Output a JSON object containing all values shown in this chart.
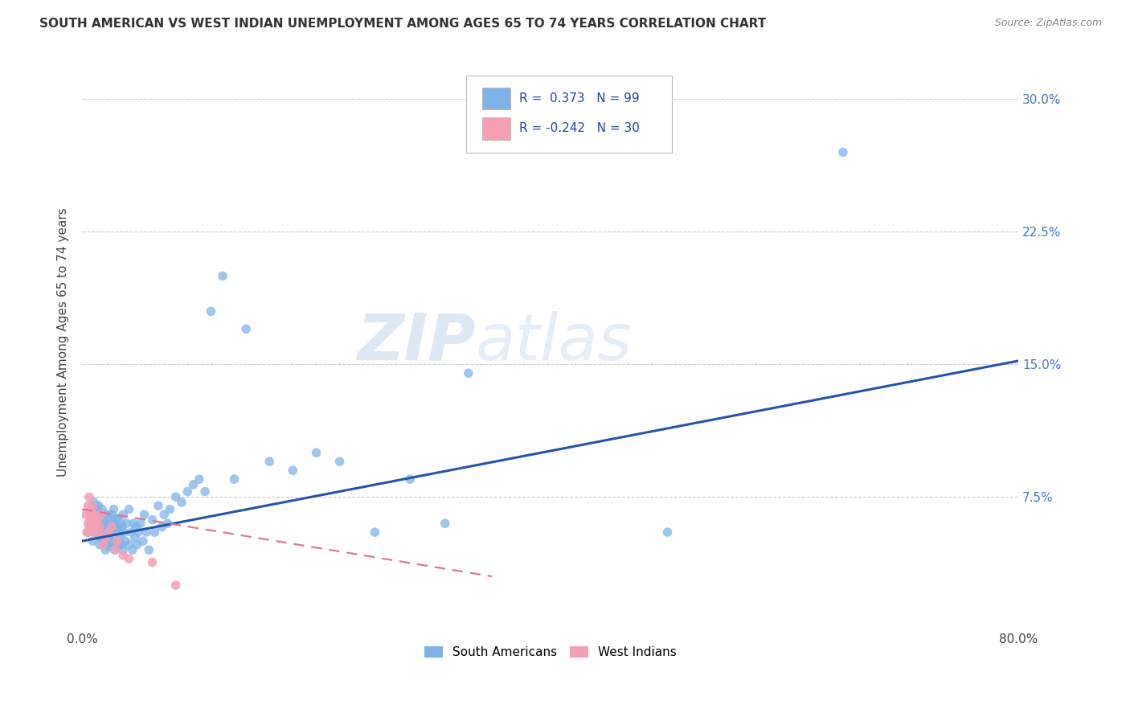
{
  "title": "SOUTH AMERICAN VS WEST INDIAN UNEMPLOYMENT AMONG AGES 65 TO 74 YEARS CORRELATION CHART",
  "source": "Source: ZipAtlas.com",
  "ylabel": "Unemployment Among Ages 65 to 74 years",
  "xlim": [
    0.0,
    0.8
  ],
  "ylim": [
    0.0,
    0.325
  ],
  "xticks": [
    0.0,
    0.1,
    0.2,
    0.3,
    0.4,
    0.5,
    0.6,
    0.7,
    0.8
  ],
  "xticklabels": [
    "0.0%",
    "",
    "",
    "",
    "",
    "",
    "",
    "",
    "80.0%"
  ],
  "yticks": [
    0.0,
    0.075,
    0.15,
    0.225,
    0.3
  ],
  "yticklabels": [
    "",
    "7.5%",
    "15.0%",
    "22.5%",
    "30.0%"
  ],
  "blue_R": 0.373,
  "blue_N": 99,
  "pink_R": -0.242,
  "pink_N": 30,
  "blue_color": "#7fb3e8",
  "pink_color": "#f4a0b4",
  "blue_line_color": "#2255aa",
  "pink_line_color": "#dd7799",
  "watermark1": "ZIP",
  "watermark2": "atlas",
  "legend_label_blue": "South Americans",
  "legend_label_pink": "West Indians",
  "blue_scatter_x": [
    0.005,
    0.007,
    0.008,
    0.009,
    0.01,
    0.01,
    0.01,
    0.011,
    0.012,
    0.012,
    0.013,
    0.013,
    0.014,
    0.014,
    0.015,
    0.015,
    0.015,
    0.016,
    0.016,
    0.017,
    0.017,
    0.018,
    0.018,
    0.019,
    0.02,
    0.02,
    0.02,
    0.021,
    0.021,
    0.022,
    0.022,
    0.023,
    0.023,
    0.024,
    0.025,
    0.025,
    0.025,
    0.026,
    0.026,
    0.027,
    0.027,
    0.028,
    0.028,
    0.029,
    0.03,
    0.03,
    0.03,
    0.031,
    0.031,
    0.032,
    0.033,
    0.033,
    0.034,
    0.035,
    0.035,
    0.036,
    0.037,
    0.038,
    0.04,
    0.04,
    0.042,
    0.043,
    0.044,
    0.045,
    0.046,
    0.047,
    0.048,
    0.05,
    0.052,
    0.053,
    0.055,
    0.057,
    0.06,
    0.062,
    0.065,
    0.068,
    0.07,
    0.073,
    0.075,
    0.08,
    0.085,
    0.09,
    0.095,
    0.1,
    0.105,
    0.11,
    0.12,
    0.13,
    0.14,
    0.16,
    0.18,
    0.2,
    0.22,
    0.25,
    0.28,
    0.31,
    0.33,
    0.5,
    0.65
  ],
  "blue_scatter_y": [
    0.055,
    0.06,
    0.065,
    0.05,
    0.06,
    0.068,
    0.072,
    0.055,
    0.062,
    0.07,
    0.058,
    0.065,
    0.053,
    0.07,
    0.048,
    0.057,
    0.066,
    0.052,
    0.063,
    0.055,
    0.068,
    0.05,
    0.06,
    0.058,
    0.045,
    0.052,
    0.06,
    0.048,
    0.065,
    0.053,
    0.058,
    0.047,
    0.063,
    0.055,
    0.05,
    0.057,
    0.065,
    0.048,
    0.06,
    0.052,
    0.068,
    0.045,
    0.058,
    0.062,
    0.05,
    0.055,
    0.063,
    0.048,
    0.057,
    0.052,
    0.06,
    0.048,
    0.058,
    0.045,
    0.065,
    0.055,
    0.05,
    0.06,
    0.048,
    0.068,
    0.055,
    0.045,
    0.06,
    0.052,
    0.058,
    0.048,
    0.055,
    0.06,
    0.05,
    0.065,
    0.055,
    0.045,
    0.062,
    0.055,
    0.07,
    0.058,
    0.065,
    0.06,
    0.068,
    0.075,
    0.072,
    0.078,
    0.082,
    0.085,
    0.078,
    0.18,
    0.2,
    0.085,
    0.17,
    0.095,
    0.09,
    0.1,
    0.095,
    0.055,
    0.085,
    0.06,
    0.145,
    0.055,
    0.27
  ],
  "pink_scatter_x": [
    0.003,
    0.004,
    0.005,
    0.005,
    0.006,
    0.006,
    0.007,
    0.007,
    0.008,
    0.008,
    0.009,
    0.009,
    0.01,
    0.01,
    0.011,
    0.012,
    0.013,
    0.014,
    0.015,
    0.016,
    0.018,
    0.02,
    0.023,
    0.025,
    0.028,
    0.03,
    0.035,
    0.04,
    0.06,
    0.08
  ],
  "pink_scatter_y": [
    0.065,
    0.055,
    0.07,
    0.06,
    0.058,
    0.075,
    0.065,
    0.068,
    0.058,
    0.062,
    0.055,
    0.07,
    0.06,
    0.065,
    0.058,
    0.062,
    0.06,
    0.055,
    0.058,
    0.065,
    0.048,
    0.052,
    0.055,
    0.058,
    0.045,
    0.05,
    0.042,
    0.04,
    0.038,
    0.025
  ],
  "blue_line_x": [
    0.0,
    0.8
  ],
  "blue_line_y": [
    0.05,
    0.152
  ],
  "pink_line_x": [
    0.0,
    0.35
  ],
  "pink_line_y": [
    0.068,
    0.03
  ]
}
